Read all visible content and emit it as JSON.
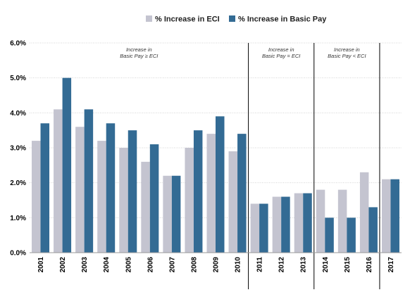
{
  "chart_data": {
    "type": "bar",
    "categories": [
      "2001",
      "2002",
      "2003",
      "2004",
      "2005",
      "2006",
      "2007",
      "2008",
      "2009",
      "2010",
      "2011",
      "2012",
      "2013",
      "2014",
      "2015",
      "2016",
      "2017"
    ],
    "series": [
      {
        "name": "% Increase in ECI",
        "color": "#c4c4d0",
        "values": [
          3.2,
          4.1,
          3.6,
          3.2,
          3.0,
          2.6,
          2.2,
          3.0,
          3.4,
          2.9,
          1.4,
          1.6,
          1.7,
          1.8,
          1.8,
          2.3,
          2.1
        ]
      },
      {
        "name": "% Increase in Basic Pay",
        "color": "#336b94",
        "values": [
          3.7,
          5.0,
          4.1,
          3.7,
          3.5,
          3.1,
          2.2,
          3.5,
          3.9,
          3.4,
          1.4,
          1.6,
          1.7,
          1.0,
          1.0,
          1.3,
          2.1
        ]
      }
    ],
    "ylim": [
      0,
      6
    ],
    "yticks": [
      "0.0%",
      "1.0%",
      "2.0%",
      "3.0%",
      "4.0%",
      "5.0%",
      "6.0%"
    ],
    "grid": true,
    "legend_position": "top-right",
    "dividers_after": [
      "2010",
      "2013",
      "2016"
    ],
    "annotations": [
      {
        "line1": "Increase in",
        "line2": "Basic Pay ≥ ECI",
        "span": [
          "2001",
          "2010"
        ]
      },
      {
        "line1": "Increase in",
        "line2": "Basic Pay = ECI",
        "span": [
          "2011",
          "2013"
        ]
      },
      {
        "line1": "Increase in",
        "line2": "Basic Pay < ECI",
        "span": [
          "2014",
          "2016"
        ]
      }
    ]
  }
}
